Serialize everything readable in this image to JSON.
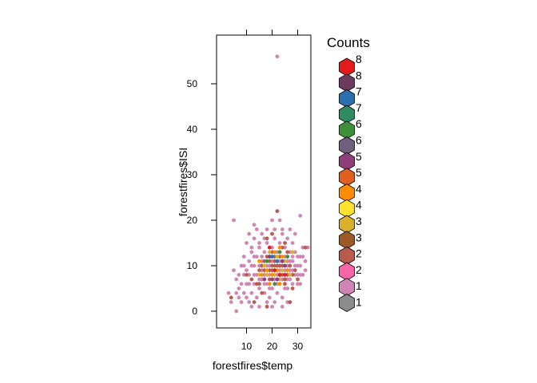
{
  "chart_data": {
    "type": "scatter",
    "subtype": "hexbin",
    "title": "",
    "xlabel": "forestfires$temp",
    "ylabel": "forestfires$ISI",
    "xlim": [
      0,
      35
    ],
    "ylim": [
      -4,
      60
    ],
    "xticks": [
      10,
      20,
      30
    ],
    "yticks": [
      0,
      10,
      20,
      30,
      40,
      50
    ],
    "grid": false,
    "legend": {
      "title": "Counts",
      "placement": "right",
      "labels": [
        "8",
        "8",
        "7",
        "7",
        "6",
        "6",
        "5",
        "5",
        "4",
        "4",
        "3",
        "3",
        "2",
        "2",
        "1",
        "1"
      ],
      "colors": [
        "#e41a1c",
        "#6b3b5e",
        "#2e6fb0",
        "#2e8b62",
        "#3d8f3a",
        "#6e607e",
        "#8e3f7a",
        "#e06020",
        "#ff8c00",
        "#ffe12e",
        "#d8b02c",
        "#9b5a26",
        "#b85a4e",
        "#f565a8",
        "#cf86b2",
        "#8c8c8c"
      ]
    },
    "series": [
      {
        "count": 1,
        "points": [
          [
            5,
            20
          ],
          [
            22,
            56
          ],
          [
            13,
            19
          ],
          [
            20,
            20
          ],
          [
            23,
            20
          ],
          [
            31,
            21
          ],
          [
            3,
            4
          ],
          [
            4,
            2
          ],
          [
            6,
            0
          ],
          [
            8,
            2
          ],
          [
            9,
            4
          ],
          [
            10,
            6
          ],
          [
            11,
            2
          ],
          [
            12,
            4
          ],
          [
            13,
            6
          ],
          [
            14,
            3
          ],
          [
            15,
            5
          ],
          [
            16,
            7
          ],
          [
            17,
            4
          ],
          [
            18,
            6
          ],
          [
            19,
            3
          ],
          [
            20,
            5
          ],
          [
            21,
            2
          ],
          [
            22,
            4
          ],
          [
            23,
            6
          ],
          [
            24,
            3
          ],
          [
            25,
            5
          ],
          [
            26,
            7
          ],
          [
            27,
            9
          ],
          [
            28,
            11
          ],
          [
            29,
            8
          ],
          [
            30,
            10
          ],
          [
            31,
            12
          ],
          [
            32,
            14
          ],
          [
            33,
            11
          ],
          [
            7,
            8
          ],
          [
            8,
            10
          ],
          [
            9,
            12
          ],
          [
            10,
            9
          ],
          [
            11,
            11
          ],
          [
            12,
            13
          ],
          [
            13,
            10
          ],
          [
            14,
            12
          ],
          [
            15,
            14
          ],
          [
            16,
            11
          ],
          [
            17,
            13
          ],
          [
            18,
            15
          ],
          [
            19,
            12
          ],
          [
            20,
            14
          ],
          [
            21,
            16
          ],
          [
            22,
            13
          ],
          [
            23,
            15
          ],
          [
            24,
            17
          ],
          [
            25,
            14
          ],
          [
            26,
            16
          ],
          [
            27,
            18
          ],
          [
            28,
            15
          ],
          [
            29,
            17
          ],
          [
            10,
            15
          ],
          [
            11,
            17
          ],
          [
            12,
            14
          ],
          [
            13,
            16
          ],
          [
            14,
            18
          ],
          [
            15,
            15
          ],
          [
            16,
            17
          ],
          [
            17,
            16
          ],
          [
            18,
            18
          ],
          [
            21,
            18
          ],
          [
            24,
            18
          ],
          [
            27,
            13
          ],
          [
            28,
            12
          ],
          [
            30,
            8
          ],
          [
            31,
            6
          ],
          [
            7,
            5
          ],
          [
            6,
            7
          ],
          [
            5,
            9
          ],
          [
            8,
            6
          ],
          [
            9,
            8
          ],
          [
            10,
            3
          ],
          [
            11,
            8
          ],
          [
            12,
            10
          ],
          [
            13,
            12
          ],
          [
            14,
            8
          ],
          [
            15,
            10
          ],
          [
            16,
            12
          ],
          [
            17,
            8
          ],
          [
            18,
            10
          ],
          [
            19,
            8
          ],
          [
            20,
            11
          ],
          [
            21,
            9
          ],
          [
            22,
            11
          ],
          [
            23,
            9
          ],
          [
            24,
            11
          ],
          [
            25,
            9
          ],
          [
            26,
            11
          ],
          [
            27,
            7
          ],
          [
            28,
            6
          ],
          [
            29,
            10
          ],
          [
            30,
            12
          ],
          [
            32,
            8
          ],
          [
            33,
            9
          ],
          [
            34,
            14
          ],
          [
            6,
            4
          ],
          [
            7,
            3
          ],
          [
            12,
            1
          ],
          [
            15,
            1
          ],
          [
            18,
            2
          ],
          [
            20,
            1
          ],
          [
            24,
            1
          ],
          [
            26,
            2
          ],
          [
            15,
            7
          ],
          [
            16,
            9
          ],
          [
            19,
            10
          ],
          [
            22,
            8
          ],
          [
            23,
            11
          ],
          [
            25,
            12
          ],
          [
            26,
            10
          ],
          [
            28,
            9
          ],
          [
            30,
            6
          ],
          [
            31,
            8
          ],
          [
            9,
            10
          ],
          [
            11,
            6
          ],
          [
            13,
            8
          ],
          [
            17,
            6
          ],
          [
            19,
            5
          ],
          [
            21,
            7
          ],
          [
            22,
            6
          ],
          [
            24,
            7
          ],
          [
            26,
            5
          ],
          [
            27,
            11
          ],
          [
            29,
            13
          ],
          [
            31,
            10
          ],
          [
            32,
            12
          ]
        ]
      },
      {
        "count": 2,
        "points": [
          [
            4,
            3
          ],
          [
            13,
            2
          ],
          [
            18,
            1
          ],
          [
            19,
            7
          ],
          [
            21,
            12
          ],
          [
            22,
            22
          ],
          [
            24,
            8
          ],
          [
            25,
            6
          ],
          [
            26,
            13
          ],
          [
            27,
            2
          ],
          [
            28,
            5
          ],
          [
            33,
            14
          ],
          [
            16,
            4
          ],
          [
            14,
            6
          ],
          [
            17,
            9
          ],
          [
            20,
            9
          ],
          [
            21,
            10
          ],
          [
            23,
            8
          ],
          [
            24,
            14
          ],
          [
            18,
            16
          ],
          [
            20,
            17
          ],
          [
            25,
            15
          ],
          [
            29,
            9
          ],
          [
            12,
            7
          ],
          [
            15,
            9
          ],
          [
            10,
            8
          ],
          [
            19,
            9
          ],
          [
            22,
            10
          ],
          [
            25,
            7
          ],
          [
            26,
            8
          ],
          [
            27,
            10
          ],
          [
            28,
            8
          ],
          [
            24,
            10
          ],
          [
            23,
            12
          ],
          [
            21,
            11
          ],
          [
            20,
            13
          ],
          [
            17,
            11
          ],
          [
            16,
            10
          ],
          [
            30,
            7
          ],
          [
            15,
            6
          ],
          [
            19,
            11
          ],
          [
            20,
            10
          ],
          [
            23,
            10
          ],
          [
            18,
            12
          ]
        ]
      },
      {
        "count": 3,
        "points": [
          [
            17,
            10
          ],
          [
            18,
            8
          ],
          [
            22,
            12
          ],
          [
            25,
            11
          ],
          [
            24,
            9
          ],
          [
            21,
            8
          ],
          [
            15,
            8
          ],
          [
            23,
            7
          ],
          [
            27,
            8
          ],
          [
            19,
            13
          ],
          [
            28,
            13
          ]
        ]
      },
      {
        "count": 4,
        "points": [
          [
            18,
            9
          ],
          [
            20,
            8
          ],
          [
            22,
            9
          ],
          [
            23,
            6
          ],
          [
            26,
            9
          ],
          [
            24,
            12
          ],
          [
            21,
            13
          ],
          [
            19,
            6
          ],
          [
            16,
            8
          ],
          [
            23,
            14
          ],
          [
            15,
            11
          ]
        ]
      },
      {
        "count": 5,
        "points": [
          [
            20,
            7
          ],
          [
            24,
            11
          ],
          [
            25,
            10
          ],
          [
            22,
            7
          ],
          [
            19,
            12
          ],
          [
            17,
            7
          ]
        ]
      },
      {
        "count": 6,
        "points": [
          [
            21,
            6
          ],
          [
            23,
            13
          ],
          [
            18,
            11
          ],
          [
            26,
            12
          ]
        ]
      },
      {
        "count": 7,
        "points": [
          [
            22,
            11
          ],
          [
            20,
            12
          ]
        ]
      },
      {
        "count": 8,
        "points": [
          [
            21,
            9
          ],
          [
            25,
            8
          ],
          [
            19,
            14
          ],
          [
            23,
            8
          ]
        ]
      }
    ]
  }
}
